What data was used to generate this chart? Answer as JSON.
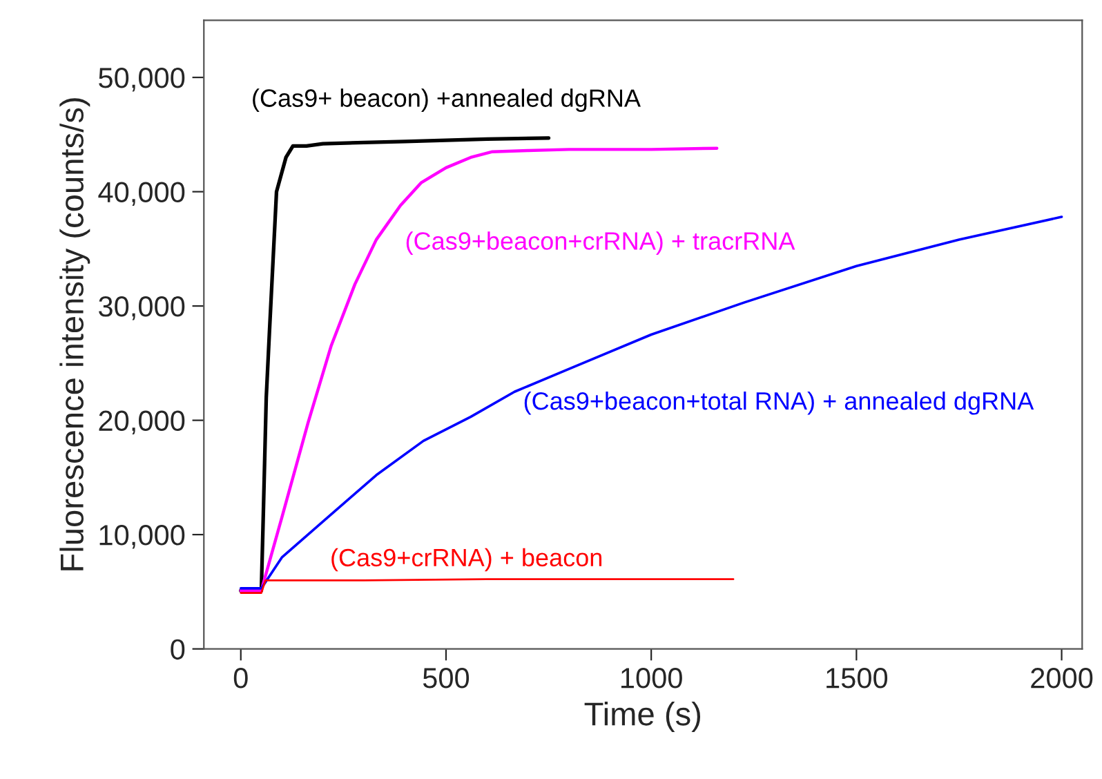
{
  "chart_data": {
    "type": "line",
    "xlabel": "Time (s)",
    "ylabel": "Fluorescence intensity (counts/s)",
    "xlim": [
      -90,
      2050
    ],
    "ylim": [
      0,
      55000
    ],
    "xticks": [
      0,
      500,
      1000,
      1500,
      2000
    ],
    "yticks": [
      0,
      {
        "value": 10000,
        "label": "10,000"
      },
      {
        "value": 20000,
        "label": "20,000"
      },
      {
        "value": 30000,
        "label": "30,000"
      },
      {
        "value": 40000,
        "label": "40,000"
      },
      {
        "value": 50000,
        "label": "50,000"
      }
    ],
    "grid": false,
    "legend": false,
    "marker": "none",
    "line_style": "solid",
    "series": [
      {
        "name": "(Cas9+ beacon) +annealed dgRNA",
        "color": "#000000",
        "x": [
          0,
          50,
          55,
          62,
          70,
          87,
          110,
          127,
          160,
          200,
          300,
          400,
          500,
          600,
          750
        ],
        "values": [
          5100,
          5100,
          12000,
          22000,
          27900,
          40000,
          43000,
          44000,
          44000,
          44200,
          44300,
          44400,
          44500,
          44600,
          44700
        ]
      },
      {
        "name": "(Cas9+beacon+crRNA) + tracrRNA",
        "color": "#ff00ff",
        "x": [
          0,
          50,
          100,
          164,
          220,
          278,
          330,
          389,
          440,
          500,
          560,
          613,
          700,
          800,
          900,
          1000,
          1160
        ],
        "values": [
          5100,
          5100,
          11500,
          19800,
          26500,
          31900,
          35800,
          38800,
          40800,
          42100,
          43000,
          43500,
          43600,
          43700,
          43700,
          43700,
          43800
        ]
      },
      {
        "name": "(Cas9+beacon+total RNA) + annealed dgRNA",
        "color": "#0000ff",
        "x": [
          0,
          50,
          100,
          221,
          330,
          445,
          560,
          667,
          800,
          1000,
          1226,
          1500,
          1750,
          2000
        ],
        "values": [
          5300,
          5300,
          8000,
          11800,
          15200,
          18200,
          20300,
          22500,
          24500,
          27500,
          30300,
          33500,
          35800,
          37800
        ]
      },
      {
        "name": "(Cas9+crRNA) + beacon",
        "color": "#ff0000",
        "x": [
          0,
          50,
          60,
          300,
          600,
          900,
          1200
        ],
        "values": [
          4900,
          4900,
          6000,
          6000,
          6100,
          6100,
          6100
        ]
      }
    ]
  }
}
